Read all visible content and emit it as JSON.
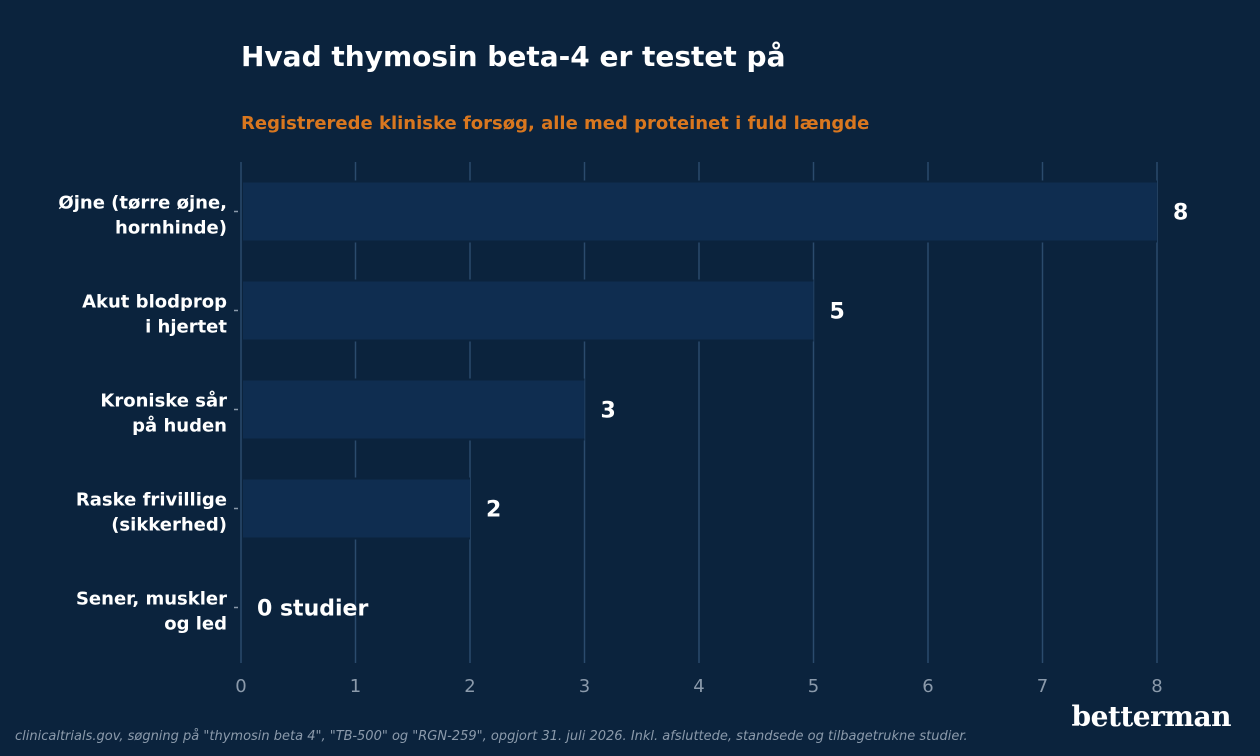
{
  "title": "Hvad thymosin beta-4 er testet på",
  "subtitle": "Registrerede kliniske forsøg, alle med proteinet i fuld længde",
  "source": "clinicaltrials.gov, søgning på \"thymosin beta 4\", \"TB-500\" og \"RGN-259\", opgjort 31. juli 2026. Inkl. afsluttede, standsede og tilbagetrukne studier.",
  "logo": "betterman",
  "colors": {
    "background": "#0b233d",
    "bar": "#0f2d50",
    "grid": "#2b4b6d",
    "title": "#ffffff",
    "subtitle": "#d9771f",
    "tick": "#8b9aab"
  },
  "chart_data": {
    "type": "bar",
    "orientation": "horizontal",
    "categories": [
      [
        "Øjne (tørre øjne,",
        "hornhinde)"
      ],
      [
        "Akut blodprop",
        "i hjertet"
      ],
      [
        "Kroniske sår",
        "på huden"
      ],
      [
        "Raske frivillige",
        "(sikkerhed)"
      ],
      [
        "Sener, muskler",
        "og led"
      ]
    ],
    "values": [
      8,
      5,
      3,
      2,
      0
    ],
    "value_labels": [
      "8",
      "5",
      "3",
      "2",
      "0 studier"
    ],
    "xlim": [
      0,
      8
    ],
    "xticks": [
      0,
      1,
      2,
      3,
      4,
      5,
      6,
      7,
      8
    ],
    "grid": "vertical",
    "xlabel": "",
    "ylabel": ""
  }
}
